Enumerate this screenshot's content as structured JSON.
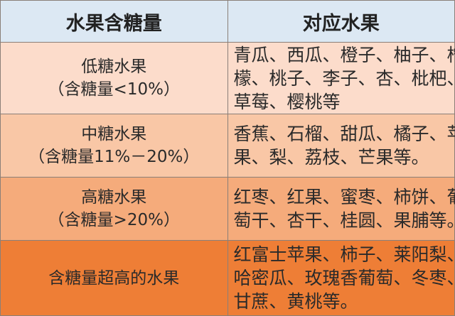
{
  "header": {
    "col1": "水果含糖量",
    "col2": "对应水果"
  },
  "colors": {
    "header": "#dce8f3",
    "row1": "#fcdccb",
    "row2": "#f9c7a6",
    "row3": "#f5ab7b",
    "row4": "#ee7e36"
  },
  "rows": [
    {
      "category": [
        "低糖水果",
        "（含糖量<10%）"
      ],
      "fruits": [
        "青瓜、西瓜、橙子、柚子、柠",
        "檬、桃子、李子、杏、枇杷、",
        "草莓、樱桃等"
      ]
    },
    {
      "category": [
        "中糖水果",
        "（含糖量11%－20%）"
      ],
      "fruits": [
        "香蕉、石榴、甜瓜、橘子、苹",
        "果、梨、荔枝、芒果等。"
      ]
    },
    {
      "category": [
        "高糖水果",
        "（含糖量>20%）"
      ],
      "fruits": [
        "红枣、红果、蜜枣、柿饼、葡",
        "萄干、杏干、桂圆、果脯等。"
      ]
    },
    {
      "category": [
        "含糖量超高的水果"
      ],
      "fruits": [
        "红富士苹果、柿子、莱阳梨、",
        "哈密瓜、玫瑰香葡萄、冬枣、",
        "甘蔗、黄桃等。"
      ]
    }
  ]
}
